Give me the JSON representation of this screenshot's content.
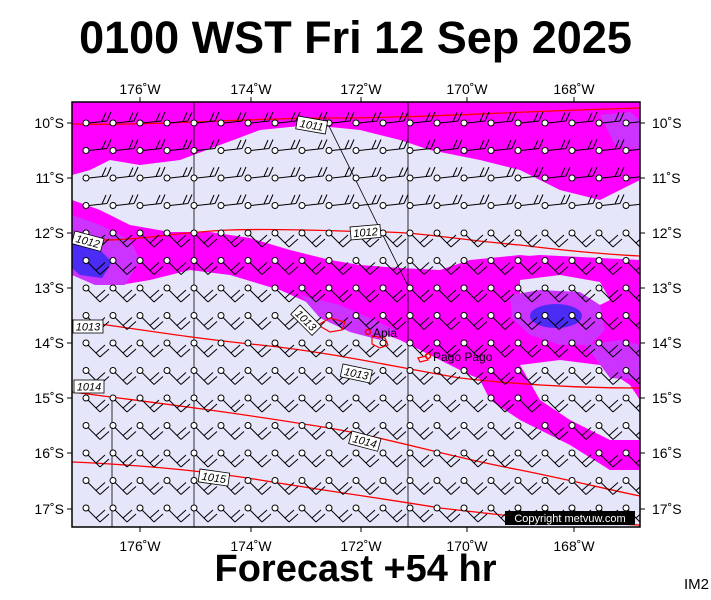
{
  "header": {
    "title": "0100 WST Fri 12 Sep 2025"
  },
  "footer": {
    "forecast": "Forecast +54 hr",
    "product_code": "IM2"
  },
  "copyright": "Copyright metvuw.com",
  "axes": {
    "lon_labels": [
      "176˚W",
      "174˚W",
      "172˚W",
      "170˚W",
      "168˚W"
    ],
    "lat_labels": [
      "10˚S",
      "11˚S",
      "12˚S",
      "13˚S",
      "14˚S",
      "15˚S",
      "16˚S",
      "17˚S"
    ]
  },
  "places": [
    {
      "name": "Apia"
    },
    {
      "name": "Pago Pago"
    }
  ],
  "isobar_labels": [
    "1011",
    "1012",
    "1012",
    "1013",
    "1013",
    "1013",
    "1014",
    "1014",
    "1015"
  ],
  "colors": {
    "background": "#e6e6fa",
    "rain_light": "#ff00ff",
    "rain_medium": "#cc33ff",
    "rain_heavy": "#4b2cf5",
    "isobar": "#ff0000",
    "land": "#ff0000"
  }
}
